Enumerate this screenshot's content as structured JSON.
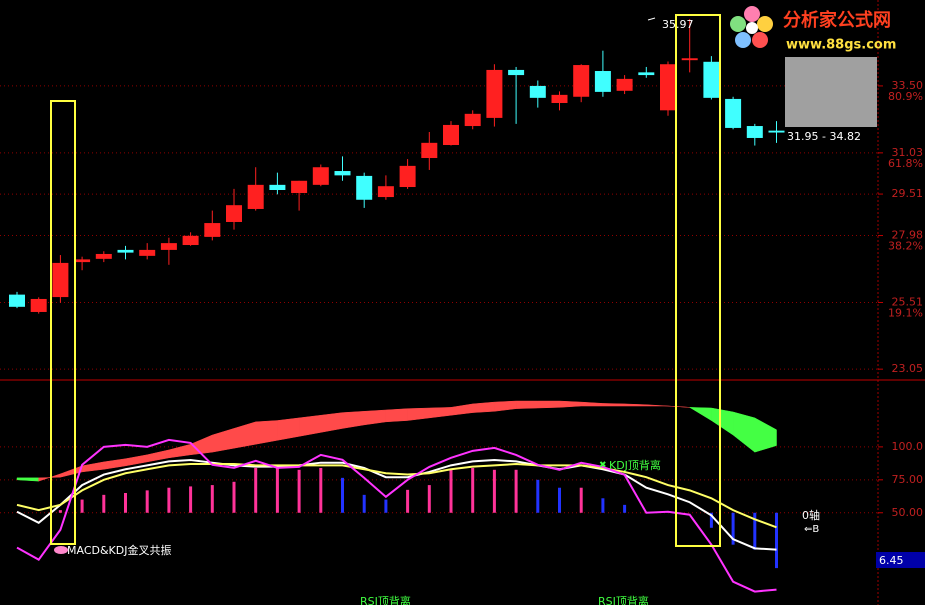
{
  "logo": {
    "name": "分析家公式网",
    "url": "www.88gs.com"
  },
  "chart_data": [
    {
      "type": "candlestick",
      "categories": [
        null,
        null,
        null,
        null,
        null,
        null,
        null,
        null,
        null,
        null,
        null,
        null,
        null,
        null,
        null,
        null,
        null,
        null,
        null,
        null,
        null,
        null,
        null,
        null,
        null,
        null,
        null,
        null,
        null,
        null,
        null,
        null,
        null,
        null,
        null,
        null
      ],
      "open": [
        25.8,
        25.16,
        25.71,
        27.0,
        27.12,
        27.45,
        27.23,
        27.45,
        27.63,
        27.93,
        28.48,
        28.96,
        29.85,
        29.55,
        29.85,
        30.36,
        30.18,
        29.4,
        29.77,
        30.84,
        31.32,
        32.02,
        32.32,
        34.09,
        33.5,
        32.87,
        33.1,
        34.05,
        33.32,
        34.0,
        32.6,
        34.45,
        34.39,
        33.02,
        32.02,
        31.85
      ],
      "high": [
        25.9,
        25.7,
        27.26,
        27.2,
        27.4,
        27.6,
        27.7,
        27.9,
        28.1,
        28.9,
        29.7,
        30.5,
        30.3,
        30.0,
        30.6,
        30.9,
        30.3,
        30.2,
        30.8,
        31.8,
        32.2,
        32.6,
        34.3,
        34.2,
        33.7,
        33.3,
        34.3,
        34.8,
        33.9,
        34.2,
        34.4,
        35.97,
        34.6,
        33.1,
        32.1,
        32.2
      ],
      "low": [
        25.3,
        25.1,
        25.5,
        26.7,
        27.0,
        27.1,
        27.1,
        26.9,
        27.6,
        27.8,
        28.2,
        28.9,
        29.5,
        28.9,
        29.8,
        30.0,
        29.0,
        29.3,
        29.7,
        30.4,
        31.3,
        31.9,
        32.0,
        32.1,
        32.7,
        32.6,
        32.9,
        33.1,
        33.2,
        33.8,
        32.4,
        34.0,
        33.0,
        31.9,
        31.3,
        31.4
      ],
      "close": [
        25.35,
        25.64,
        26.97,
        27.1,
        27.3,
        27.35,
        27.45,
        27.7,
        27.97,
        28.44,
        29.1,
        29.85,
        29.66,
        30.0,
        30.5,
        30.2,
        29.3,
        29.8,
        30.55,
        31.4,
        32.06,
        32.47,
        34.09,
        33.9,
        33.06,
        33.17,
        34.27,
        33.28,
        33.76,
        33.9,
        34.3,
        34.52,
        33.06,
        31.95,
        31.58,
        31.78
      ],
      "up_color": "#ff2020",
      "down_color": "#40ffff",
      "ylim": [
        22.65,
        36.67
      ],
      "yticks": [
        {
          "value": 33.5,
          "label": "33.50"
        },
        {
          "value": 31.03,
          "label": "31.03"
        },
        {
          "value": 29.51,
          "label": "29.51"
        },
        {
          "value": 27.98,
          "label": "27.98"
        },
        {
          "value": 25.51,
          "label": "25.51"
        },
        {
          "value": 23.05,
          "label": "23.05"
        }
      ],
      "fib_ticks": [
        {
          "value": 33.5,
          "label": "80.9%"
        },
        {
          "value": 31.03,
          "label": "61.8%"
        },
        {
          "value": 27.98,
          "label": "38.2%"
        },
        {
          "value": 25.51,
          "label": "19.1%"
        }
      ],
      "grid": true,
      "high_label": "35.97",
      "range_label": "31.95 - 34.82"
    },
    {
      "type": "indicator",
      "ylim": [
        -20,
        150
      ],
      "yticks": [
        {
          "value": 100,
          "label": "100.0"
        },
        {
          "value": 75,
          "label": "75.00"
        },
        {
          "value": 50,
          "label": "50.00"
        }
      ],
      "grid": true,
      "band": {
        "fast": [
          75,
          74,
          79.5,
          85.6,
          88.6,
          91,
          94,
          97.7,
          102,
          109,
          114,
          119,
          120,
          122,
          124,
          126,
          127,
          128,
          129,
          129.5,
          130,
          132.6,
          134,
          134.8,
          134.8,
          134.8,
          134,
          133,
          132.6,
          132,
          131,
          130,
          120,
          109,
          96,
          101
        ],
        "slow": [
          76.5,
          76.5,
          77,
          81,
          83,
          85.6,
          88.6,
          91.7,
          94,
          96,
          99,
          102,
          105,
          108,
          111,
          114,
          116.7,
          119,
          120,
          122,
          124,
          126,
          127,
          129,
          129.5,
          130,
          131,
          131,
          131,
          131,
          131,
          130,
          129.5,
          126.5,
          122,
          113
        ],
        "up_color": "#ff4a4a",
        "down_color": "#44ff44"
      },
      "series": [
        {
          "color": "#ffffff",
          "values": [
            50.8,
            42.4,
            56,
            71,
            79,
            83,
            86,
            89,
            90,
            88,
            86,
            85,
            85,
            86,
            88,
            88,
            84,
            77,
            77,
            81,
            86,
            89,
            90,
            89,
            86,
            83,
            86,
            83,
            79,
            69,
            64,
            58,
            48,
            30,
            23,
            22
          ]
        },
        {
          "color": "#ffff66",
          "values": [
            56,
            52,
            56,
            67,
            75,
            80,
            83,
            86,
            87,
            87,
            87,
            86,
            86,
            86,
            86,
            86,
            83,
            80,
            79,
            80,
            83,
            85,
            86,
            87,
            86,
            86,
            86,
            84,
            81,
            77,
            71,
            67,
            61,
            52,
            45,
            39
          ]
        },
        {
          "color": "#ff33ff",
          "values": [
            23.5,
            14.4,
            37.1,
            86.4,
            100,
            101.5,
            100,
            105.3,
            103,
            86.4,
            84.1,
            89.4,
            84.1,
            84.8,
            93.9,
            90.2,
            76.5,
            62.1,
            75,
            84.8,
            91.7,
            97,
            99.2,
            93.9,
            86.4,
            82.6,
            87.9,
            84.8,
            78.8,
            50,
            50.8,
            48.5,
            25.8,
            -2.3,
            -9.8,
            -8.3
          ]
        }
      ],
      "bar_base": 50,
      "bars": [
        null,
        null,
        52,
        60,
        63.6,
        65,
        67,
        69,
        70,
        71,
        73.5,
        84,
        84,
        82.6,
        84,
        76.5,
        63.6,
        60,
        67.4,
        71,
        82.6,
        84,
        82.6,
        82.6,
        75,
        69,
        69,
        61,
        56,
        null,
        null,
        null,
        38.6,
        25.8,
        22,
        8
      ],
      "bar_colors": [
        null,
        null,
        "#ff3399",
        "#ff3399",
        "#ff3399",
        "#ff3399",
        "#ff3399",
        "#ff3399",
        "#ff3399",
        "#ff3399",
        "#ff3399",
        "#ff3399",
        "#ff3399",
        "#ff3399",
        "#ff3399",
        "#2233ff",
        "#2233ff",
        "#2233ff",
        "#ff3399",
        "#ff3399",
        "#ff3399",
        "#ff3399",
        "#ff3399",
        "#ff3399",
        "#2233ff",
        "#2233ff",
        "#ff3399",
        "#2233ff",
        "#2233ff",
        null,
        null,
        null,
        "#2233ff",
        "#2233ff",
        "#2233ff",
        "#2233ff"
      ],
      "signal_cross": "MACD&KDJ金叉共振",
      "signal_kdj": "KDJ顶背离",
      "signal_rsi": [
        "RSI顶背离",
        "RSI顶背离"
      ],
      "zero_axis": "0轴",
      "value_box": "6.45"
    }
  ]
}
